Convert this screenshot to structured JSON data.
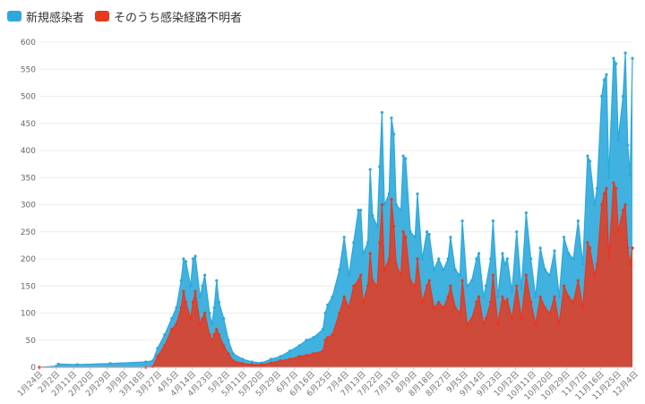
{
  "chart_data": {
    "type": "area",
    "title": "",
    "xlabel": "",
    "ylabel": "",
    "ylim": [
      0,
      600
    ],
    "yticks": [
      0,
      50,
      100,
      150,
      200,
      250,
      300,
      350,
      400,
      450,
      500,
      550,
      600
    ],
    "grid": true,
    "legend_position": "top-left",
    "x_tick_labels": [
      "1月24日",
      "2月2日",
      "2月11日",
      "2月20日",
      "2月29日",
      "3月9日",
      "3月18日",
      "3月27日",
      "4月5日",
      "4月14日",
      "4月23日",
      "5月2日",
      "5月11日",
      "5月20日",
      "5月29日",
      "6月7日",
      "6月16日",
      "6月25日",
      "7月4日",
      "7月13日",
      "7月22日",
      "7月31日",
      "8月9日",
      "8月18日",
      "8月27日",
      "9月5日",
      "9月14日",
      "9月23日",
      "10月2日",
      "10月11日",
      "10月20日",
      "10月29日",
      "11月7日",
      "11月16日",
      "11月25日",
      "12月4日"
    ],
    "series": [
      {
        "name": "新規感染者",
        "color": "#2ca9dc",
        "keypoints": [
          [
            0,
            0
          ],
          [
            7,
            2
          ],
          [
            8,
            6
          ],
          [
            16,
            5
          ],
          [
            30,
            7
          ],
          [
            45,
            10
          ],
          [
            48,
            12
          ],
          [
            50,
            35
          ],
          [
            53,
            60
          ],
          [
            56,
            90
          ],
          [
            58,
            110
          ],
          [
            60,
            160
          ],
          [
            61,
            200
          ],
          [
            62,
            195
          ],
          [
            64,
            150
          ],
          [
            65,
            200
          ],
          [
            66,
            205
          ],
          [
            68,
            130
          ],
          [
            69,
            150
          ],
          [
            70,
            170
          ],
          [
            72,
            100
          ],
          [
            73,
            80
          ],
          [
            74,
            110
          ],
          [
            75,
            160
          ],
          [
            76,
            120
          ],
          [
            78,
            90
          ],
          [
            80,
            50
          ],
          [
            82,
            25
          ],
          [
            86,
            15
          ],
          [
            90,
            10
          ],
          [
            94,
            8
          ],
          [
            98,
            15
          ],
          [
            102,
            20
          ],
          [
            106,
            30
          ],
          [
            110,
            40
          ],
          [
            113,
            50
          ],
          [
            116,
            55
          ],
          [
            120,
            70
          ],
          [
            121,
            100
          ],
          [
            122,
            115
          ],
          [
            124,
            130
          ],
          [
            127,
            180
          ],
          [
            129,
            240
          ],
          [
            131,
            170
          ],
          [
            133,
            230
          ],
          [
            135,
            290
          ],
          [
            136,
            290
          ],
          [
            137,
            210
          ],
          [
            139,
            230
          ],
          [
            140,
            365
          ],
          [
            141,
            280
          ],
          [
            143,
            260
          ],
          [
            144,
            370
          ],
          [
            145,
            470
          ],
          [
            146,
            300
          ],
          [
            148,
            320
          ],
          [
            149,
            460
          ],
          [
            150,
            430
          ],
          [
            151,
            300
          ],
          [
            153,
            290
          ],
          [
            154,
            390
          ],
          [
            155,
            385
          ],
          [
            157,
            250
          ],
          [
            159,
            240
          ],
          [
            160,
            320
          ],
          [
            162,
            200
          ],
          [
            164,
            250
          ],
          [
            165,
            245
          ],
          [
            167,
            180
          ],
          [
            169,
            200
          ],
          [
            171,
            180
          ],
          [
            173,
            200
          ],
          [
            174,
            240
          ],
          [
            176,
            180
          ],
          [
            178,
            170
          ],
          [
            179,
            270
          ],
          [
            181,
            150
          ],
          [
            183,
            160
          ],
          [
            185,
            200
          ],
          [
            186,
            210
          ],
          [
            188,
            130
          ],
          [
            189,
            150
          ],
          [
            191,
            200
          ],
          [
            192,
            270
          ],
          [
            194,
            130
          ],
          [
            196,
            210
          ],
          [
            197,
            190
          ],
          [
            198,
            200
          ],
          [
            200,
            140
          ],
          [
            202,
            250
          ],
          [
            204,
            145
          ],
          [
            206,
            285
          ],
          [
            208,
            200
          ],
          [
            210,
            130
          ],
          [
            212,
            220
          ],
          [
            214,
            180
          ],
          [
            216,
            170
          ],
          [
            218,
            215
          ],
          [
            220,
            130
          ],
          [
            222,
            240
          ],
          [
            224,
            210
          ],
          [
            226,
            200
          ],
          [
            228,
            270
          ],
          [
            230,
            190
          ],
          [
            232,
            390
          ],
          [
            233,
            380
          ],
          [
            235,
            300
          ],
          [
            236,
            330
          ],
          [
            238,
            500
          ],
          [
            239,
            530
          ],
          [
            240,
            540
          ],
          [
            241,
            350
          ],
          [
            243,
            570
          ],
          [
            244,
            560
          ],
          [
            245,
            420
          ],
          [
            247,
            500
          ],
          [
            248,
            580
          ],
          [
            249,
            410
          ],
          [
            250,
            355
          ],
          [
            251,
            570
          ]
        ]
      },
      {
        "name": "そのうち感染経路不明者",
        "color": "#e8381e",
        "keypoints": [
          [
            0,
            0
          ],
          [
            45,
            0
          ],
          [
            48,
            1
          ],
          [
            50,
            20
          ],
          [
            53,
            40
          ],
          [
            56,
            70
          ],
          [
            58,
            80
          ],
          [
            60,
            110
          ],
          [
            61,
            140
          ],
          [
            62,
            120
          ],
          [
            64,
            90
          ],
          [
            65,
            120
          ],
          [
            66,
            140
          ],
          [
            68,
            80
          ],
          [
            69,
            90
          ],
          [
            70,
            100
          ],
          [
            72,
            60
          ],
          [
            73,
            50
          ],
          [
            74,
            60
          ],
          [
            75,
            70
          ],
          [
            76,
            60
          ],
          [
            78,
            40
          ],
          [
            80,
            25
          ],
          [
            82,
            12
          ],
          [
            86,
            7
          ],
          [
            90,
            5
          ],
          [
            94,
            5
          ],
          [
            98,
            8
          ],
          [
            102,
            12
          ],
          [
            106,
            15
          ],
          [
            110,
            20
          ],
          [
            113,
            22
          ],
          [
            116,
            25
          ],
          [
            120,
            30
          ],
          [
            121,
            50
          ],
          [
            122,
            55
          ],
          [
            124,
            60
          ],
          [
            127,
            100
          ],
          [
            129,
            130
          ],
          [
            131,
            110
          ],
          [
            133,
            150
          ],
          [
            135,
            160
          ],
          [
            136,
            170
          ],
          [
            137,
            120
          ],
          [
            139,
            150
          ],
          [
            140,
            210
          ],
          [
            141,
            160
          ],
          [
            143,
            150
          ],
          [
            144,
            230
          ],
          [
            145,
            300
          ],
          [
            146,
            180
          ],
          [
            148,
            200
          ],
          [
            149,
            310
          ],
          [
            150,
            260
          ],
          [
            151,
            190
          ],
          [
            153,
            170
          ],
          [
            154,
            250
          ],
          [
            155,
            240
          ],
          [
            157,
            160
          ],
          [
            159,
            150
          ],
          [
            160,
            200
          ],
          [
            162,
            120
          ],
          [
            164,
            150
          ],
          [
            165,
            160
          ],
          [
            167,
            110
          ],
          [
            169,
            120
          ],
          [
            171,
            110
          ],
          [
            173,
            130
          ],
          [
            174,
            150
          ],
          [
            176,
            110
          ],
          [
            178,
            100
          ],
          [
            179,
            160
          ],
          [
            181,
            80
          ],
          [
            183,
            90
          ],
          [
            185,
            120
          ],
          [
            186,
            130
          ],
          [
            188,
            80
          ],
          [
            189,
            90
          ],
          [
            191,
            120
          ],
          [
            192,
            170
          ],
          [
            194,
            80
          ],
          [
            196,
            130
          ],
          [
            197,
            120
          ],
          [
            198,
            125
          ],
          [
            200,
            90
          ],
          [
            202,
            150
          ],
          [
            204,
            90
          ],
          [
            206,
            170
          ],
          [
            208,
            120
          ],
          [
            210,
            80
          ],
          [
            212,
            130
          ],
          [
            214,
            110
          ],
          [
            216,
            100
          ],
          [
            218,
            130
          ],
          [
            220,
            80
          ],
          [
            222,
            150
          ],
          [
            224,
            130
          ],
          [
            226,
            120
          ],
          [
            228,
            160
          ],
          [
            230,
            110
          ],
          [
            232,
            230
          ],
          [
            233,
            220
          ],
          [
            235,
            170
          ],
          [
            236,
            190
          ],
          [
            238,
            300
          ],
          [
            239,
            320
          ],
          [
            240,
            330
          ],
          [
            241,
            200
          ],
          [
            243,
            340
          ],
          [
            244,
            330
          ],
          [
            245,
            250
          ],
          [
            247,
            290
          ],
          [
            248,
            300
          ],
          [
            249,
            220
          ],
          [
            250,
            190
          ],
          [
            251,
            220
          ]
        ]
      }
    ]
  }
}
